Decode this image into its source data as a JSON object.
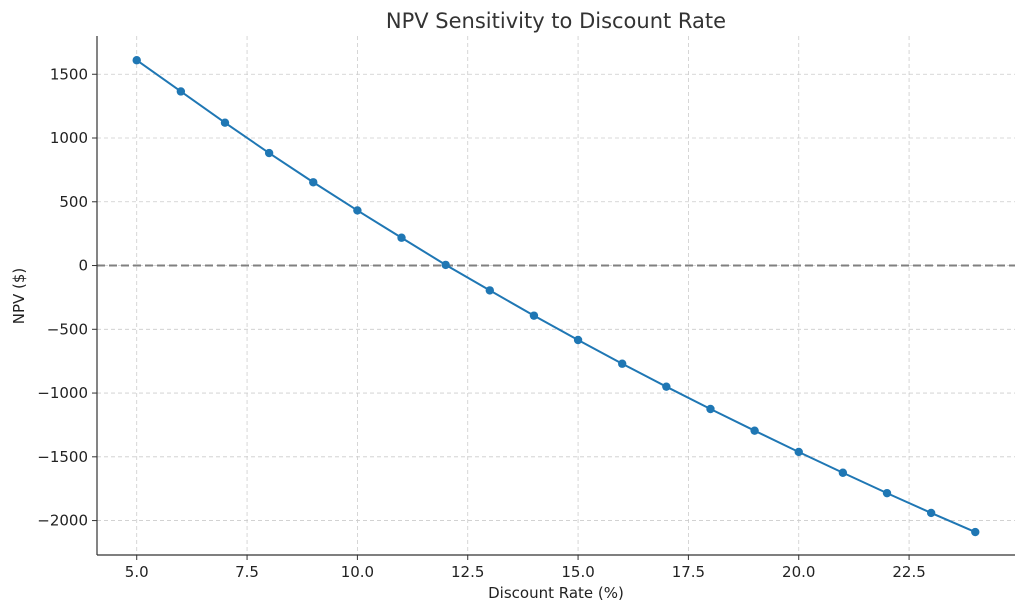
{
  "chart_data": {
    "type": "line",
    "title": "NPV Sensitivity to Discount Rate",
    "xlabel": "Discount Rate (%)",
    "ylabel": "NPV ($)",
    "xlim": [
      4.1,
      24.9
    ],
    "ylim": [
      -2270,
      1800
    ],
    "x_ticks": [
      5.0,
      7.5,
      10.0,
      12.5,
      15.0,
      17.5,
      20.0,
      22.5
    ],
    "x_tick_labels": [
      "5.0",
      "7.5",
      "10.0",
      "12.5",
      "15.0",
      "17.5",
      "20.0",
      "22.5"
    ],
    "y_ticks": [
      1500,
      1000,
      500,
      0,
      -500,
      -1000,
      -1500,
      -2000
    ],
    "y_tick_labels": [
      "1500",
      "1000",
      "500",
      "0",
      "−500",
      "−1000",
      "−1500",
      "−2000"
    ],
    "grid": true,
    "reference_line": {
      "y": 0,
      "style": "dashed",
      "color": "#808080"
    },
    "series": [
      {
        "color": "#1f77b4",
        "marker": "circle",
        "x": [
          5,
          6,
          7,
          8,
          9,
          10,
          11,
          12,
          13,
          14,
          15,
          16,
          17,
          18,
          19,
          20,
          21,
          22,
          23,
          24
        ],
        "values": [
          1610,
          1365,
          1120,
          882,
          653,
          432,
          218,
          5,
          -195,
          -393,
          -584,
          -770,
          -950,
          -1125,
          -1295,
          -1462,
          -1625,
          -1785,
          -1940,
          -2090
        ]
      }
    ]
  }
}
